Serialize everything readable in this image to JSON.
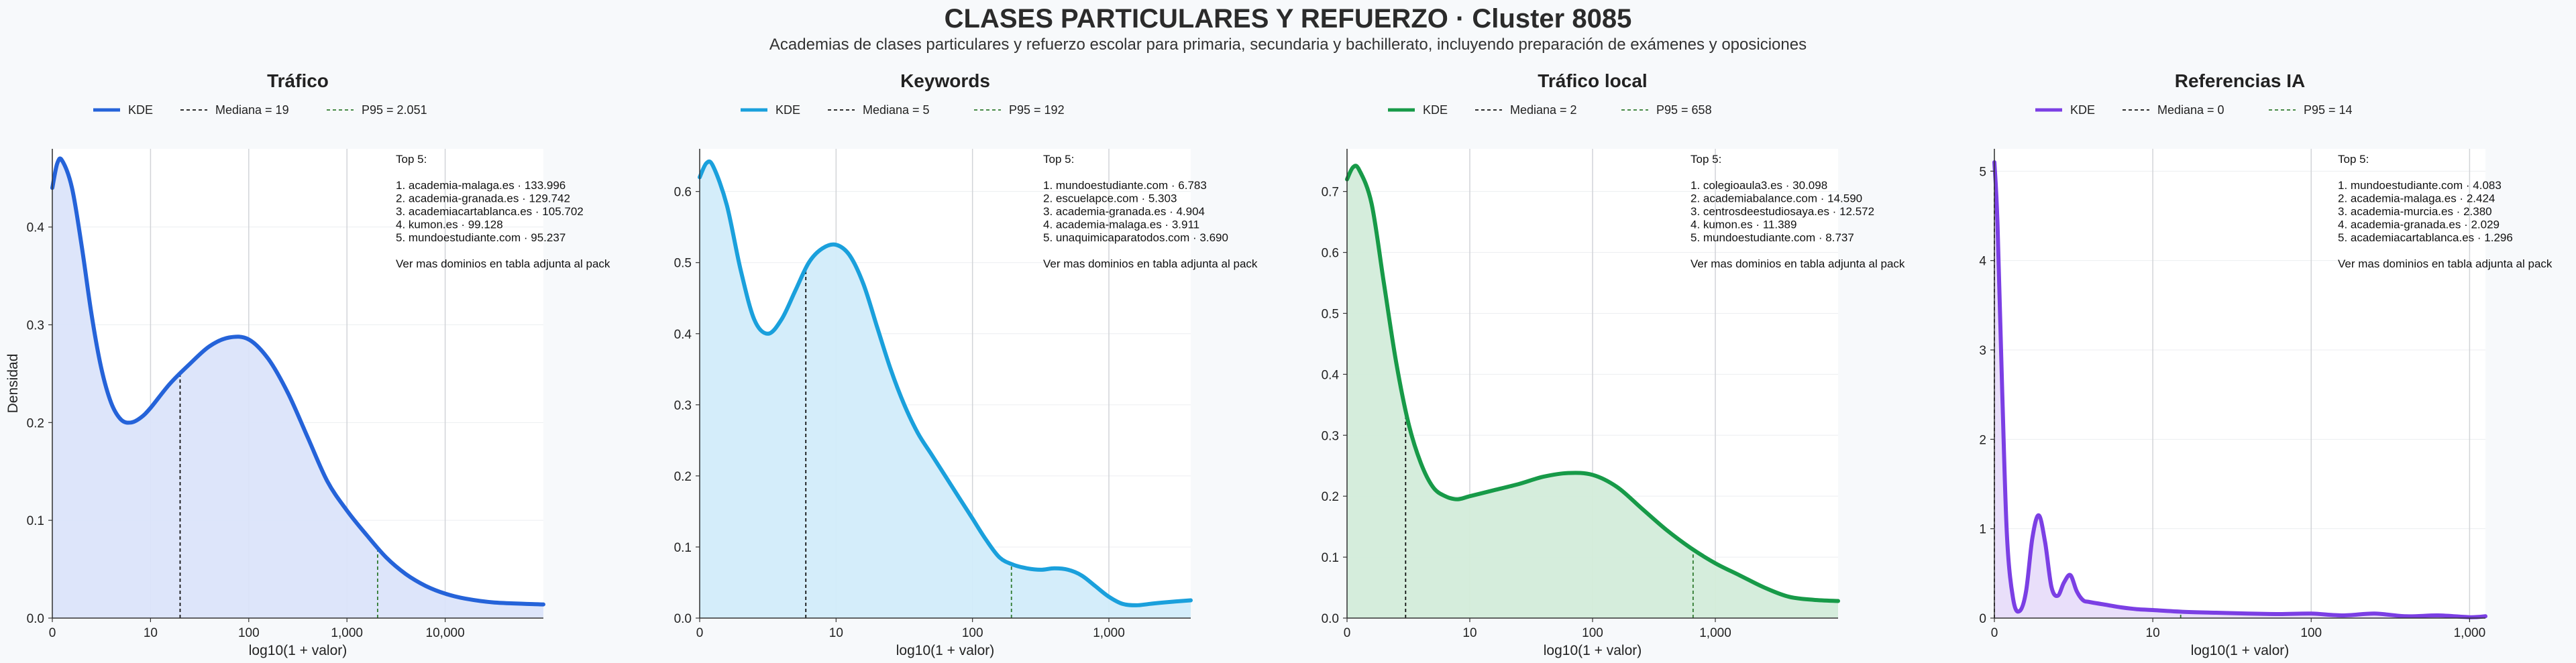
{
  "header": {
    "title": "CLASES PARTICULARES Y REFUERZO · Cluster 8085",
    "subtitle": "Academias de clases particulares y refuerzo escolar para primaria, secundaria y bachillerato, incluyendo preparación de exámenes y oposiciones"
  },
  "chart_data": [
    {
      "type": "area",
      "title": "Tráfico",
      "xlabel": "log10(1 + valor)",
      "ylabel": "Densidad",
      "color": "#2563d9",
      "fill": "#dbe4fa",
      "median_color": "#111111",
      "p95_color": "#2f7a2f",
      "x_scale": "log10(1+x)",
      "xlim": [
        0,
        5.0
      ],
      "ylim": [
        0,
        0.48
      ],
      "x_ticks": [
        0,
        1,
        2,
        3,
        4
      ],
      "x_tick_labels": [
        "0",
        "10",
        "100",
        "1,000",
        "10,000"
      ],
      "y_ticks": [
        0,
        0.1,
        0.2,
        0.3,
        0.4
      ],
      "y_tick_labels": [
        "0.0",
        "0.1",
        "0.2",
        "0.3",
        "0.4"
      ],
      "grid": true,
      "legend": {
        "kde": "KDE",
        "median": "Mediana = 19",
        "p95": "P95 = 2.051"
      },
      "median": 19,
      "p95": 2051,
      "x": [
        0,
        0.05,
        0.1,
        0.2,
        0.3,
        0.4,
        0.5,
        0.6,
        0.7,
        0.8,
        0.9,
        1.0,
        1.2,
        1.4,
        1.6,
        1.8,
        2.0,
        2.2,
        2.4,
        2.6,
        2.8,
        3.0,
        3.2,
        3.4,
        3.6,
        3.8,
        4.0,
        4.2,
        4.5,
        5.0
      ],
      "values": [
        0.44,
        0.465,
        0.468,
        0.44,
        0.38,
        0.31,
        0.255,
        0.22,
        0.203,
        0.2,
        0.205,
        0.215,
        0.24,
        0.26,
        0.278,
        0.287,
        0.285,
        0.265,
        0.23,
        0.185,
        0.14,
        0.11,
        0.085,
        0.062,
        0.045,
        0.033,
        0.025,
        0.02,
        0.016,
        0.014
      ],
      "annotation": [
        "Top 5:",
        "",
        "1. academia-malaga.es · 133.996",
        "2. academia-granada.es · 129.742",
        "3. academiacartablanca.es · 105.702",
        "4. kumon.es · 99.128",
        "5. mundoestudiante.com · 95.237",
        "",
        "Ver mas dominios en tabla adjunta al pack"
      ]
    },
    {
      "type": "area",
      "title": "Keywords",
      "xlabel": "log10(1 + valor)",
      "ylabel": "",
      "color": "#1aa0dc",
      "fill": "#d2ecfa",
      "median_color": "#111111",
      "p95_color": "#2f7a2f",
      "x_scale": "log10(1+x)",
      "xlim": [
        0,
        3.6
      ],
      "ylim": [
        0,
        0.66
      ],
      "x_ticks": [
        0,
        1,
        2,
        3
      ],
      "x_tick_labels": [
        "0",
        "10",
        "100",
        "1,000"
      ],
      "y_ticks": [
        0,
        0.1,
        0.2,
        0.3,
        0.4,
        0.5,
        0.6
      ],
      "y_tick_labels": [
        "0.0",
        "0.1",
        "0.2",
        "0.3",
        "0.4",
        "0.5",
        "0.6"
      ],
      "grid": true,
      "legend": {
        "kde": "KDE",
        "median": "Mediana = 5",
        "p95": "P95 = 192"
      },
      "median": 5,
      "p95": 192,
      "x": [
        0,
        0.05,
        0.1,
        0.2,
        0.3,
        0.4,
        0.5,
        0.6,
        0.7,
        0.8,
        0.9,
        1.0,
        1.1,
        1.2,
        1.3,
        1.4,
        1.5,
        1.6,
        1.7,
        1.8,
        1.9,
        2.0,
        2.1,
        2.2,
        2.3,
        2.4,
        2.5,
        2.6,
        2.7,
        2.8,
        2.9,
        3.0,
        3.1,
        3.2,
        3.3,
        3.4,
        3.6
      ],
      "values": [
        0.62,
        0.64,
        0.635,
        0.58,
        0.49,
        0.42,
        0.4,
        0.42,
        0.46,
        0.5,
        0.52,
        0.525,
        0.51,
        0.47,
        0.41,
        0.35,
        0.3,
        0.26,
        0.23,
        0.2,
        0.17,
        0.14,
        0.11,
        0.085,
        0.075,
        0.07,
        0.068,
        0.07,
        0.068,
        0.06,
        0.045,
        0.03,
        0.02,
        0.018,
        0.02,
        0.022,
        0.025
      ],
      "annotation": [
        "Top 5:",
        "",
        "1. mundoestudiante.com · 6.783",
        "2. escuelapce.com · 5.303",
        "3. academia-granada.es · 4.904",
        "4. academia-malaga.es · 3.911",
        "5. unaquimicaparatodos.com · 3.690",
        "",
        "Ver mas dominios en tabla adjunta al pack"
      ]
    },
    {
      "type": "area",
      "title": "Tráfico local",
      "xlabel": "log10(1 + valor)",
      "ylabel": "",
      "color": "#179a48",
      "fill": "#d3ecda",
      "median_color": "#111111",
      "p95_color": "#2f7a2f",
      "x_scale": "log10(1+x)",
      "xlim": [
        0,
        4.0
      ],
      "ylim": [
        0,
        0.77
      ],
      "x_ticks": [
        0,
        1,
        2,
        3
      ],
      "x_tick_labels": [
        "0",
        "10",
        "100",
        "1,000"
      ],
      "y_ticks": [
        0,
        0.1,
        0.2,
        0.3,
        0.4,
        0.5,
        0.6,
        0.7
      ],
      "y_tick_labels": [
        "0.0",
        "0.1",
        "0.2",
        "0.3",
        "0.4",
        "0.5",
        "0.6",
        "0.7"
      ],
      "grid": true,
      "legend": {
        "kde": "KDE",
        "median": "Mediana = 2",
        "p95": "P95 = 658"
      },
      "median": 2,
      "p95": 658,
      "x": [
        0,
        0.05,
        0.1,
        0.2,
        0.3,
        0.4,
        0.5,
        0.6,
        0.7,
        0.8,
        0.9,
        1.0,
        1.2,
        1.4,
        1.6,
        1.8,
        2.0,
        2.2,
        2.4,
        2.6,
        2.8,
        3.0,
        3.2,
        3.4,
        3.6,
        3.8,
        4.0
      ],
      "values": [
        0.72,
        0.74,
        0.735,
        0.68,
        0.55,
        0.42,
        0.32,
        0.255,
        0.215,
        0.2,
        0.195,
        0.2,
        0.21,
        0.22,
        0.232,
        0.238,
        0.235,
        0.215,
        0.18,
        0.145,
        0.115,
        0.09,
        0.07,
        0.05,
        0.035,
        0.03,
        0.028
      ],
      "annotation": [
        "Top 5:",
        "",
        "1. colegioaula3.es · 30.098",
        "2. academiabalance.com · 14.590",
        "3. centrosdeestudiosaya.es · 12.572",
        "4. kumon.es · 11.389",
        "5. mundoestudiante.com · 8.737",
        "",
        "Ver mas dominios en tabla adjunta al pack"
      ]
    },
    {
      "type": "area",
      "title": "Referencias IA",
      "xlabel": "log10(1 + valor)",
      "ylabel": "",
      "color": "#7b3fe4",
      "fill": "#e8ddfa",
      "median_color": "#111111",
      "p95_color": "#2f7a2f",
      "x_scale": "log10(1+x)",
      "xlim": [
        0,
        3.1
      ],
      "ylim": [
        0,
        5.25
      ],
      "x_ticks": [
        0,
        1,
        2,
        3
      ],
      "x_tick_labels": [
        "0",
        "10",
        "100",
        "1,000"
      ],
      "y_ticks": [
        0,
        1,
        2,
        3,
        4,
        5
      ],
      "y_tick_labels": [
        "0",
        "1",
        "2",
        "3",
        "4",
        "5"
      ],
      "grid": true,
      "legend": {
        "kde": "KDE",
        "median": "Mediana = 0",
        "p95": "P95 = 14"
      },
      "median": 0,
      "p95": 14,
      "x": [
        0,
        0.02,
        0.05,
        0.08,
        0.12,
        0.16,
        0.2,
        0.24,
        0.28,
        0.32,
        0.36,
        0.4,
        0.44,
        0.48,
        0.52,
        0.56,
        0.6,
        0.7,
        0.8,
        0.9,
        1.0,
        1.2,
        1.4,
        1.6,
        1.8,
        2.0,
        2.2,
        2.4,
        2.6,
        2.8,
        3.0,
        3.1
      ],
      "values": [
        5.1,
        4.4,
        2.5,
        0.9,
        0.2,
        0.08,
        0.3,
        0.9,
        1.15,
        0.85,
        0.35,
        0.25,
        0.4,
        0.48,
        0.3,
        0.2,
        0.18,
        0.15,
        0.12,
        0.1,
        0.09,
        0.07,
        0.06,
        0.05,
        0.045,
        0.05,
        0.03,
        0.05,
        0.02,
        0.03,
        0.01,
        0.02
      ],
      "annotation": [
        "Top 5:",
        "",
        "1. mundoestudiante.com · 4.083",
        "2. academia-malaga.es · 2.424",
        "3. academia-murcia.es · 2.380",
        "4. academia-granada.es · 2.029",
        "5. academiacartablanca.es · 1.296",
        "",
        "Ver mas dominios en tabla adjunta al pack"
      ]
    }
  ]
}
